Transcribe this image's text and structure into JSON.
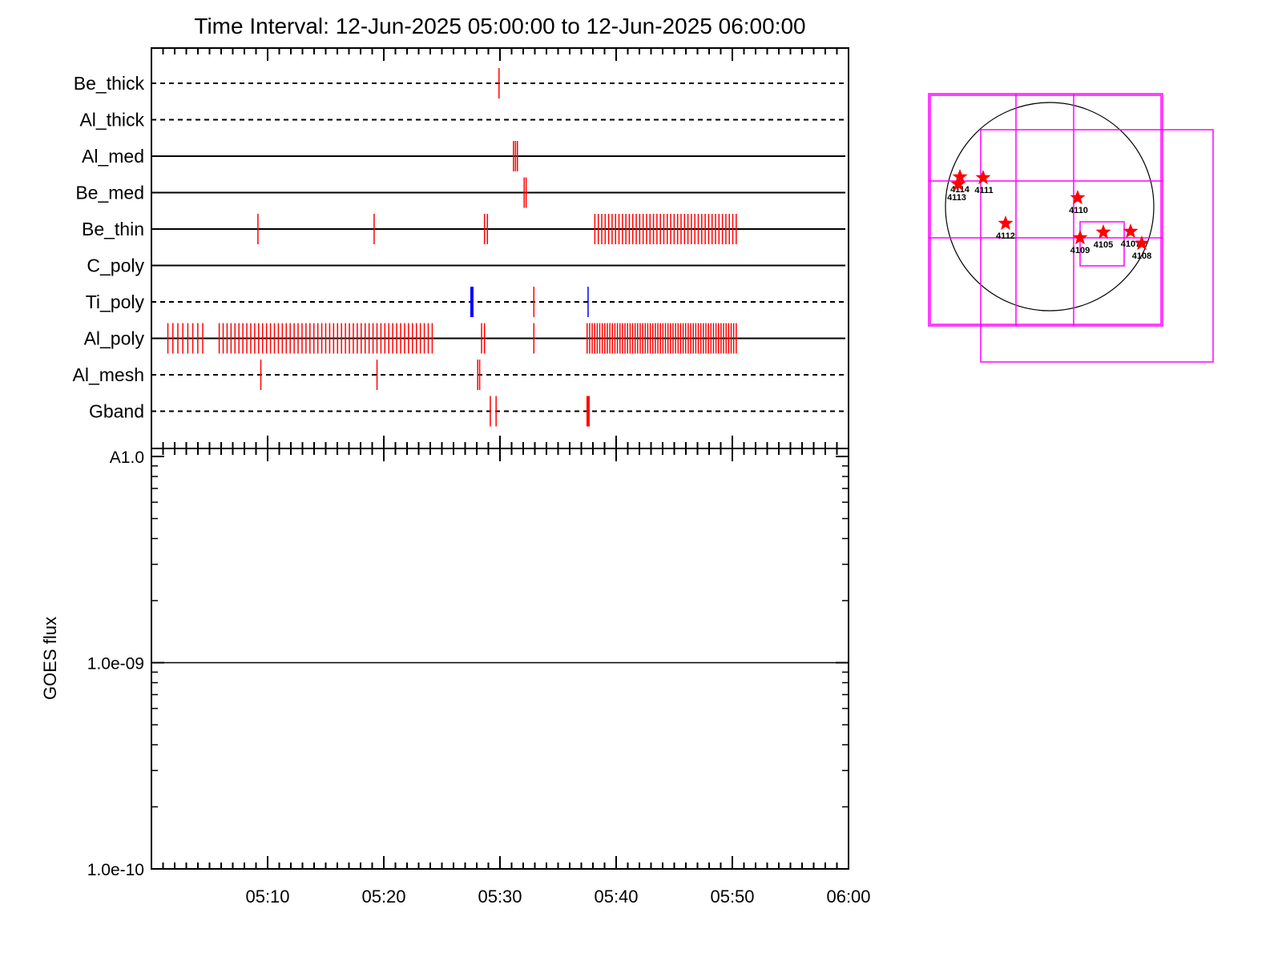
{
  "chart_data": [
    {
      "type": "scatter",
      "title": "Time Interval: 12-Jun-2025 05:00:00 to 12-Jun-2025 06:00:00",
      "xlabel": "",
      "ylabel": "",
      "xlim": [
        "05:00",
        "06:00"
      ],
      "x_ticks": [
        "05:10",
        "05:20",
        "05:30",
        "05:40",
        "05:50",
        "06:00"
      ],
      "channels": [
        {
          "name": "Be_thick",
          "line": "dashed",
          "events": [
            {
              "t": "05:29:55",
              "color": "#ff0000"
            }
          ]
        },
        {
          "name": "Al_thick",
          "line": "dashed",
          "events": []
        },
        {
          "name": "Al_med",
          "line": "solid",
          "events": [
            {
              "t": "05:31:10",
              "color": "#ff0000"
            },
            {
              "t": "05:31:20",
              "color": "#ff0000"
            },
            {
              "t": "05:31:30",
              "color": "#ff0000"
            }
          ]
        },
        {
          "name": "Be_med",
          "line": "solid",
          "events": [
            {
              "t": "05:32:05",
              "color": "#ff0000"
            },
            {
              "t": "05:32:15",
              "color": "#ff0000"
            }
          ]
        },
        {
          "name": "Be_thin",
          "line": "solid",
          "events": [
            {
              "t": "05:09:10",
              "color": "#ff0000"
            },
            {
              "t": "05:19:10",
              "color": "#ff0000"
            },
            {
              "t": "05:28:40",
              "color": "#ff0000"
            },
            {
              "t": "05:28:55",
              "color": "#ff0000"
            }
          ],
          "burst": {
            "start": "05:38:10",
            "end": "05:50:20",
            "count": 42,
            "color": "#ff0000"
          }
        },
        {
          "name": "C_poly",
          "line": "solid",
          "events": []
        },
        {
          "name": "Ti_poly",
          "line": "dashed",
          "events": [
            {
              "t": "05:27:35",
              "color": "#0000ff",
              "bold": true
            },
            {
              "t": "05:32:55",
              "color": "#ff0000"
            },
            {
              "t": "05:37:35",
              "color": "#0000ff"
            }
          ]
        },
        {
          "name": "Al_poly",
          "line": "solid",
          "events": [
            {
              "t": "05:28:25",
              "color": "#ff0000"
            },
            {
              "t": "05:28:40",
              "color": "#ff0000"
            },
            {
              "t": "05:32:55",
              "color": "#ff0000"
            }
          ],
          "bursts": [
            {
              "start": "05:01:25",
              "end": "05:04:25",
              "count": 8,
              "color": "#ff0000"
            },
            {
              "start": "05:05:50",
              "end": "05:24:10",
              "count": 55,
              "color": "#ff0000"
            },
            {
              "start": "05:37:30",
              "end": "05:50:20",
              "count": 60,
              "color": "#ff0000"
            }
          ]
        },
        {
          "name": "Al_mesh",
          "line": "dashed",
          "events": [
            {
              "t": "05:09:25",
              "color": "#ff0000"
            },
            {
              "t": "05:19:25",
              "color": "#ff0000"
            },
            {
              "t": "05:28:05",
              "color": "#ff0000"
            },
            {
              "t": "05:28:15",
              "color": "#ff0000"
            }
          ]
        },
        {
          "name": "Gband",
          "line": "dashed",
          "events": [
            {
              "t": "05:29:10",
              "color": "#ff0000"
            },
            {
              "t": "05:29:40",
              "color": "#ff0000"
            },
            {
              "t": "05:37:35",
              "color": "#ff0000",
              "bold": true
            }
          ]
        }
      ]
    },
    {
      "type": "line",
      "title": "",
      "xlabel": "",
      "ylabel": "GOES flux",
      "y_scale": "log",
      "ylim": [
        1e-10,
        1e-08
      ],
      "y_tick_labels": [
        "1.0e-10",
        "1.0e-09",
        "A1.0"
      ],
      "y_tick_values": [
        1e-10,
        1e-09,
        1e-08
      ],
      "x_ticks": [
        "05:10",
        "05:20",
        "05:30",
        "05:40",
        "05:50",
        "06:00"
      ],
      "series": [
        {
          "name": "",
          "color": "#000000",
          "points": [
            [
              "05:00",
              1e-09
            ],
            [
              "06:00",
              1e-09
            ]
          ]
        }
      ]
    }
  ],
  "solar_map": {
    "star_color": "#ff0000",
    "box_color": "#ff00ff",
    "limb_color": "#000000",
    "regions": [
      "4114",
      "4113",
      "4111",
      "4110",
      "4112",
      "4109",
      "4105",
      "4107",
      "4108"
    ]
  }
}
